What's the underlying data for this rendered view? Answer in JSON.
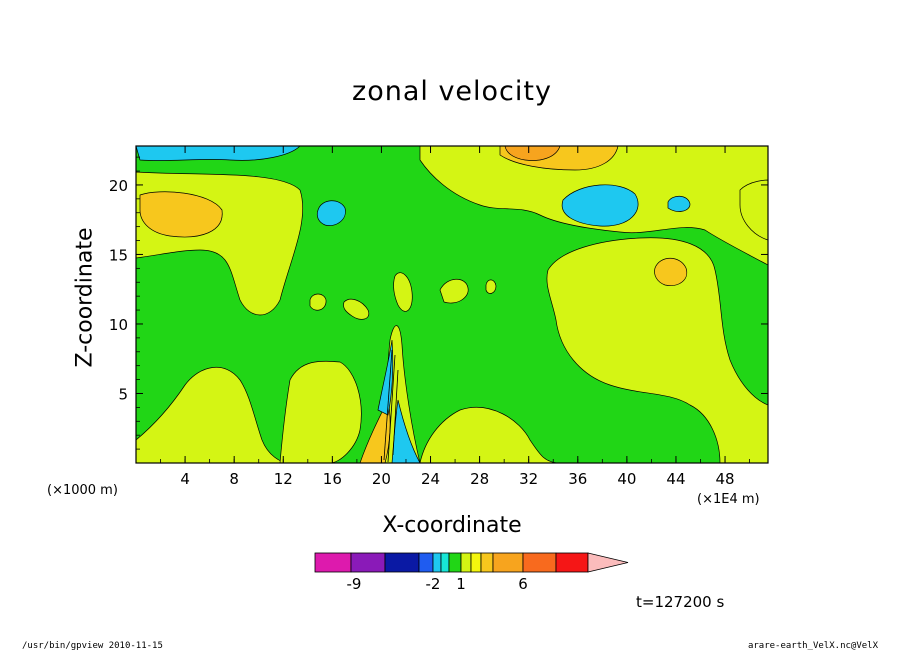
{
  "chart_data": {
    "type": "heatmap",
    "title": "zonal velocity",
    "xlabel": "X-coordinate",
    "ylabel": "Z-coordinate",
    "x_unit_left": "(×1000 m)",
    "x_unit_right": "(×1E4 m)",
    "xlim": [
      0,
      51.5
    ],
    "ylim": [
      0,
      22.8
    ],
    "x_ticks": [
      4,
      8,
      12,
      16,
      20,
      24,
      28,
      32,
      36,
      40,
      44,
      48
    ],
    "y_ticks": [
      5,
      10,
      15,
      20
    ],
    "colorbar": {
      "labels": [
        "-9",
        "-2",
        "1",
        "6"
      ],
      "levels": [
        -12,
        -9,
        -6,
        -3,
        -2,
        -1,
        0,
        1,
        2,
        3,
        4,
        6,
        8,
        10
      ],
      "colors": [
        "#dd1aad",
        "#8a1ab8",
        "#0a19a4",
        "#1f5cf0",
        "#1ec8f0",
        "#17e6d6",
        "#21d616",
        "#d4f514",
        "#f4f60e",
        "#f7c71d",
        "#f7a41e",
        "#f86a1e",
        "#f51616",
        "#f98080",
        "#fbbcbc"
      ],
      "over_color": "#fbbcbc"
    },
    "time_label": "t=127200 s"
  },
  "footer": {
    "left": "/usr/bin/gpview   2010-11-15",
    "right": "arare-earth_VelX.nc@VelX"
  }
}
